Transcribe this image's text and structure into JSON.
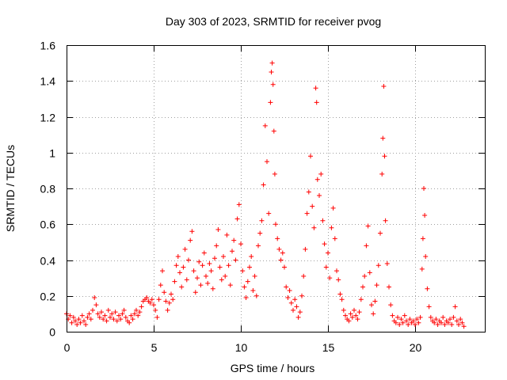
{
  "chart_data": {
    "type": "scatter",
    "title": "Day 303 of 2023, SRMTID for receiver pvog",
    "xlabel": "GPS time / hours",
    "ylabel": "SRMTID / TECUs",
    "xlim": [
      0,
      24
    ],
    "ylim": [
      0,
      1.6
    ],
    "xticks": [
      0,
      5,
      10,
      15,
      20
    ],
    "xtick_labels": [
      "0",
      "5",
      "10",
      "15",
      "20"
    ],
    "yticks": [
      0,
      0.2,
      0.4,
      0.6,
      0.8,
      1.0,
      1.2,
      1.4,
      1.6
    ],
    "ytick_labels": [
      "0",
      "0.2",
      "0.4",
      "0.6",
      "0.8",
      "1",
      "1.2",
      "1.4",
      "1.6"
    ],
    "grid": true,
    "marker": "plus",
    "color": "#ff0000",
    "series": [
      {
        "name": "SRMTID",
        "points": [
          [
            0.0,
            0.1
          ],
          [
            0.1,
            0.07
          ],
          [
            0.2,
            0.09
          ],
          [
            0.3,
            0.05
          ],
          [
            0.4,
            0.08
          ],
          [
            0.5,
            0.06
          ],
          [
            0.6,
            0.04
          ],
          [
            0.7,
            0.07
          ],
          [
            0.8,
            0.05
          ],
          [
            0.9,
            0.09
          ],
          [
            1.0,
            0.06
          ],
          [
            1.1,
            0.04
          ],
          [
            1.2,
            0.08
          ],
          [
            1.3,
            0.1
          ],
          [
            1.4,
            0.07
          ],
          [
            1.5,
            0.12
          ],
          [
            1.6,
            0.19
          ],
          [
            1.7,
            0.15
          ],
          [
            1.8,
            0.1
          ],
          [
            1.9,
            0.08
          ],
          [
            2.0,
            0.11
          ],
          [
            2.1,
            0.07
          ],
          [
            2.2,
            0.09
          ],
          [
            2.3,
            0.06
          ],
          [
            2.4,
            0.12
          ],
          [
            2.5,
            0.08
          ],
          [
            2.6,
            0.1
          ],
          [
            2.7,
            0.07
          ],
          [
            2.8,
            0.11
          ],
          [
            2.9,
            0.06
          ],
          [
            3.0,
            0.09
          ],
          [
            3.1,
            0.07
          ],
          [
            3.2,
            0.1
          ],
          [
            3.3,
            0.12
          ],
          [
            3.4,
            0.08
          ],
          [
            3.5,
            0.06
          ],
          [
            3.6,
            0.05
          ],
          [
            3.7,
            0.09
          ],
          [
            3.8,
            0.07
          ],
          [
            3.9,
            0.1
          ],
          [
            4.0,
            0.12
          ],
          [
            4.1,
            0.09
          ],
          [
            4.2,
            0.11
          ],
          [
            4.3,
            0.14
          ],
          [
            4.4,
            0.17
          ],
          [
            4.5,
            0.18
          ],
          [
            4.6,
            0.19
          ],
          [
            4.7,
            0.17
          ],
          [
            4.8,
            0.16
          ],
          [
            4.9,
            0.18
          ],
          [
            5.0,
            0.15
          ],
          [
            5.1,
            0.12
          ],
          [
            5.2,
            0.08
          ],
          [
            5.3,
            0.18
          ],
          [
            5.4,
            0.26
          ],
          [
            5.5,
            0.34
          ],
          [
            5.6,
            0.22
          ],
          [
            5.7,
            0.17
          ],
          [
            5.8,
            0.12
          ],
          [
            5.9,
            0.16
          ],
          [
            6.0,
            0.21
          ],
          [
            6.1,
            0.18
          ],
          [
            6.2,
            0.28
          ],
          [
            6.3,
            0.37
          ],
          [
            6.4,
            0.42
          ],
          [
            6.5,
            0.33
          ],
          [
            6.6,
            0.25
          ],
          [
            6.7,
            0.36
          ],
          [
            6.8,
            0.46
          ],
          [
            6.9,
            0.29
          ],
          [
            7.0,
            0.4
          ],
          [
            7.1,
            0.51
          ],
          [
            7.2,
            0.56
          ],
          [
            7.3,
            0.34
          ],
          [
            7.4,
            0.22
          ],
          [
            7.5,
            0.3
          ],
          [
            7.6,
            0.39
          ],
          [
            7.7,
            0.26
          ],
          [
            7.8,
            0.37
          ],
          [
            7.9,
            0.44
          ],
          [
            8.0,
            0.31
          ],
          [
            8.1,
            0.27
          ],
          [
            8.2,
            0.38
          ],
          [
            8.3,
            0.34
          ],
          [
            8.4,
            0.24
          ],
          [
            8.5,
            0.41
          ],
          [
            8.6,
            0.48
          ],
          [
            8.7,
            0.57
          ],
          [
            8.8,
            0.36
          ],
          [
            8.9,
            0.29
          ],
          [
            9.0,
            0.42
          ],
          [
            9.1,
            0.31
          ],
          [
            9.2,
            0.54
          ],
          [
            9.3,
            0.37
          ],
          [
            9.4,
            0.26
          ],
          [
            9.5,
            0.45
          ],
          [
            9.6,
            0.51
          ],
          [
            9.7,
            0.4
          ],
          [
            9.8,
            0.63
          ],
          [
            9.9,
            0.71
          ],
          [
            10.0,
            0.49
          ],
          [
            10.1,
            0.34
          ],
          [
            10.2,
            0.25
          ],
          [
            10.3,
            0.19
          ],
          [
            10.4,
            0.28
          ],
          [
            10.5,
            0.36
          ],
          [
            10.6,
            0.42
          ],
          [
            10.7,
            0.23
          ],
          [
            10.8,
            0.31
          ],
          [
            10.9,
            0.2
          ],
          [
            11.0,
            0.48
          ],
          [
            11.1,
            0.55
          ],
          [
            11.2,
            0.62
          ],
          [
            11.3,
            0.82
          ],
          [
            11.4,
            1.15
          ],
          [
            11.5,
            0.95
          ],
          [
            11.6,
            0.66
          ],
          [
            11.7,
            1.28
          ],
          [
            11.75,
            1.45
          ],
          [
            11.8,
            1.5
          ],
          [
            11.85,
            1.38
          ],
          [
            11.9,
            1.12
          ],
          [
            11.95,
            0.88
          ],
          [
            12.0,
            0.6
          ],
          [
            12.1,
            0.52
          ],
          [
            12.2,
            0.46
          ],
          [
            12.3,
            0.4
          ],
          [
            12.4,
            0.44
          ],
          [
            12.5,
            0.36
          ],
          [
            12.6,
            0.25
          ],
          [
            12.7,
            0.19
          ],
          [
            12.8,
            0.23
          ],
          [
            12.9,
            0.16
          ],
          [
            13.0,
            0.12
          ],
          [
            13.1,
            0.18
          ],
          [
            13.2,
            0.14
          ],
          [
            13.3,
            0.08
          ],
          [
            13.4,
            0.11
          ],
          [
            13.5,
            0.2
          ],
          [
            13.6,
            0.31
          ],
          [
            13.7,
            0.46
          ],
          [
            13.8,
            0.66
          ],
          [
            13.9,
            0.78
          ],
          [
            14.0,
            0.98
          ],
          [
            14.1,
            0.7
          ],
          [
            14.2,
            0.58
          ],
          [
            14.3,
            1.36
          ],
          [
            14.35,
            1.28
          ],
          [
            14.4,
            0.85
          ],
          [
            14.5,
            0.76
          ],
          [
            14.6,
            0.88
          ],
          [
            14.7,
            0.62
          ],
          [
            14.8,
            0.49
          ],
          [
            14.9,
            0.36
          ],
          [
            15.0,
            0.44
          ],
          [
            15.1,
            0.3
          ],
          [
            15.2,
            0.58
          ],
          [
            15.3,
            0.69
          ],
          [
            15.4,
            0.52
          ],
          [
            15.5,
            0.34
          ],
          [
            15.6,
            0.29
          ],
          [
            15.7,
            0.21
          ],
          [
            15.8,
            0.18
          ],
          [
            15.9,
            0.12
          ],
          [
            16.0,
            0.09
          ],
          [
            16.1,
            0.07
          ],
          [
            16.2,
            0.06
          ],
          [
            16.3,
            0.1
          ],
          [
            16.4,
            0.08
          ],
          [
            16.5,
            0.12
          ],
          [
            16.6,
            0.09
          ],
          [
            16.7,
            0.07
          ],
          [
            16.8,
            0.11
          ],
          [
            16.9,
            0.18
          ],
          [
            17.0,
            0.25
          ],
          [
            17.1,
            0.31
          ],
          [
            17.2,
            0.48
          ],
          [
            17.3,
            0.59
          ],
          [
            17.4,
            0.33
          ],
          [
            17.5,
            0.15
          ],
          [
            17.6,
            0.1
          ],
          [
            17.7,
            0.17
          ],
          [
            17.8,
            0.26
          ],
          [
            17.9,
            0.37
          ],
          [
            18.0,
            0.55
          ],
          [
            18.1,
            0.88
          ],
          [
            18.15,
            1.08
          ],
          [
            18.2,
            1.37
          ],
          [
            18.25,
            0.98
          ],
          [
            18.3,
            0.62
          ],
          [
            18.4,
            0.38
          ],
          [
            18.5,
            0.25
          ],
          [
            18.6,
            0.15
          ],
          [
            18.7,
            0.09
          ],
          [
            18.8,
            0.06
          ],
          [
            18.9,
            0.05
          ],
          [
            19.0,
            0.08
          ],
          [
            19.1,
            0.04
          ],
          [
            19.2,
            0.07
          ],
          [
            19.3,
            0.05
          ],
          [
            19.4,
            0.09
          ],
          [
            19.5,
            0.06
          ],
          [
            19.6,
            0.04
          ],
          [
            19.7,
            0.07
          ],
          [
            19.8,
            0.05
          ],
          [
            19.9,
            0.06
          ],
          [
            20.0,
            0.04
          ],
          [
            20.1,
            0.07
          ],
          [
            20.2,
            0.05
          ],
          [
            20.3,
            0.08
          ],
          [
            20.4,
            0.35
          ],
          [
            20.45,
            0.52
          ],
          [
            20.5,
            0.8
          ],
          [
            20.55,
            0.65
          ],
          [
            20.6,
            0.42
          ],
          [
            20.7,
            0.24
          ],
          [
            20.8,
            0.14
          ],
          [
            20.9,
            0.08
          ],
          [
            21.0,
            0.06
          ],
          [
            21.1,
            0.05
          ],
          [
            21.2,
            0.07
          ],
          [
            21.3,
            0.04
          ],
          [
            21.4,
            0.06
          ],
          [
            21.5,
            0.05
          ],
          [
            21.6,
            0.08
          ],
          [
            21.7,
            0.04
          ],
          [
            21.8,
            0.06
          ],
          [
            21.9,
            0.05
          ],
          [
            22.0,
            0.07
          ],
          [
            22.1,
            0.04
          ],
          [
            22.2,
            0.08
          ],
          [
            22.3,
            0.14
          ],
          [
            22.4,
            0.06
          ],
          [
            22.5,
            0.04
          ],
          [
            22.6,
            0.07
          ],
          [
            22.7,
            0.05
          ],
          [
            22.8,
            0.03
          ]
        ]
      }
    ]
  }
}
